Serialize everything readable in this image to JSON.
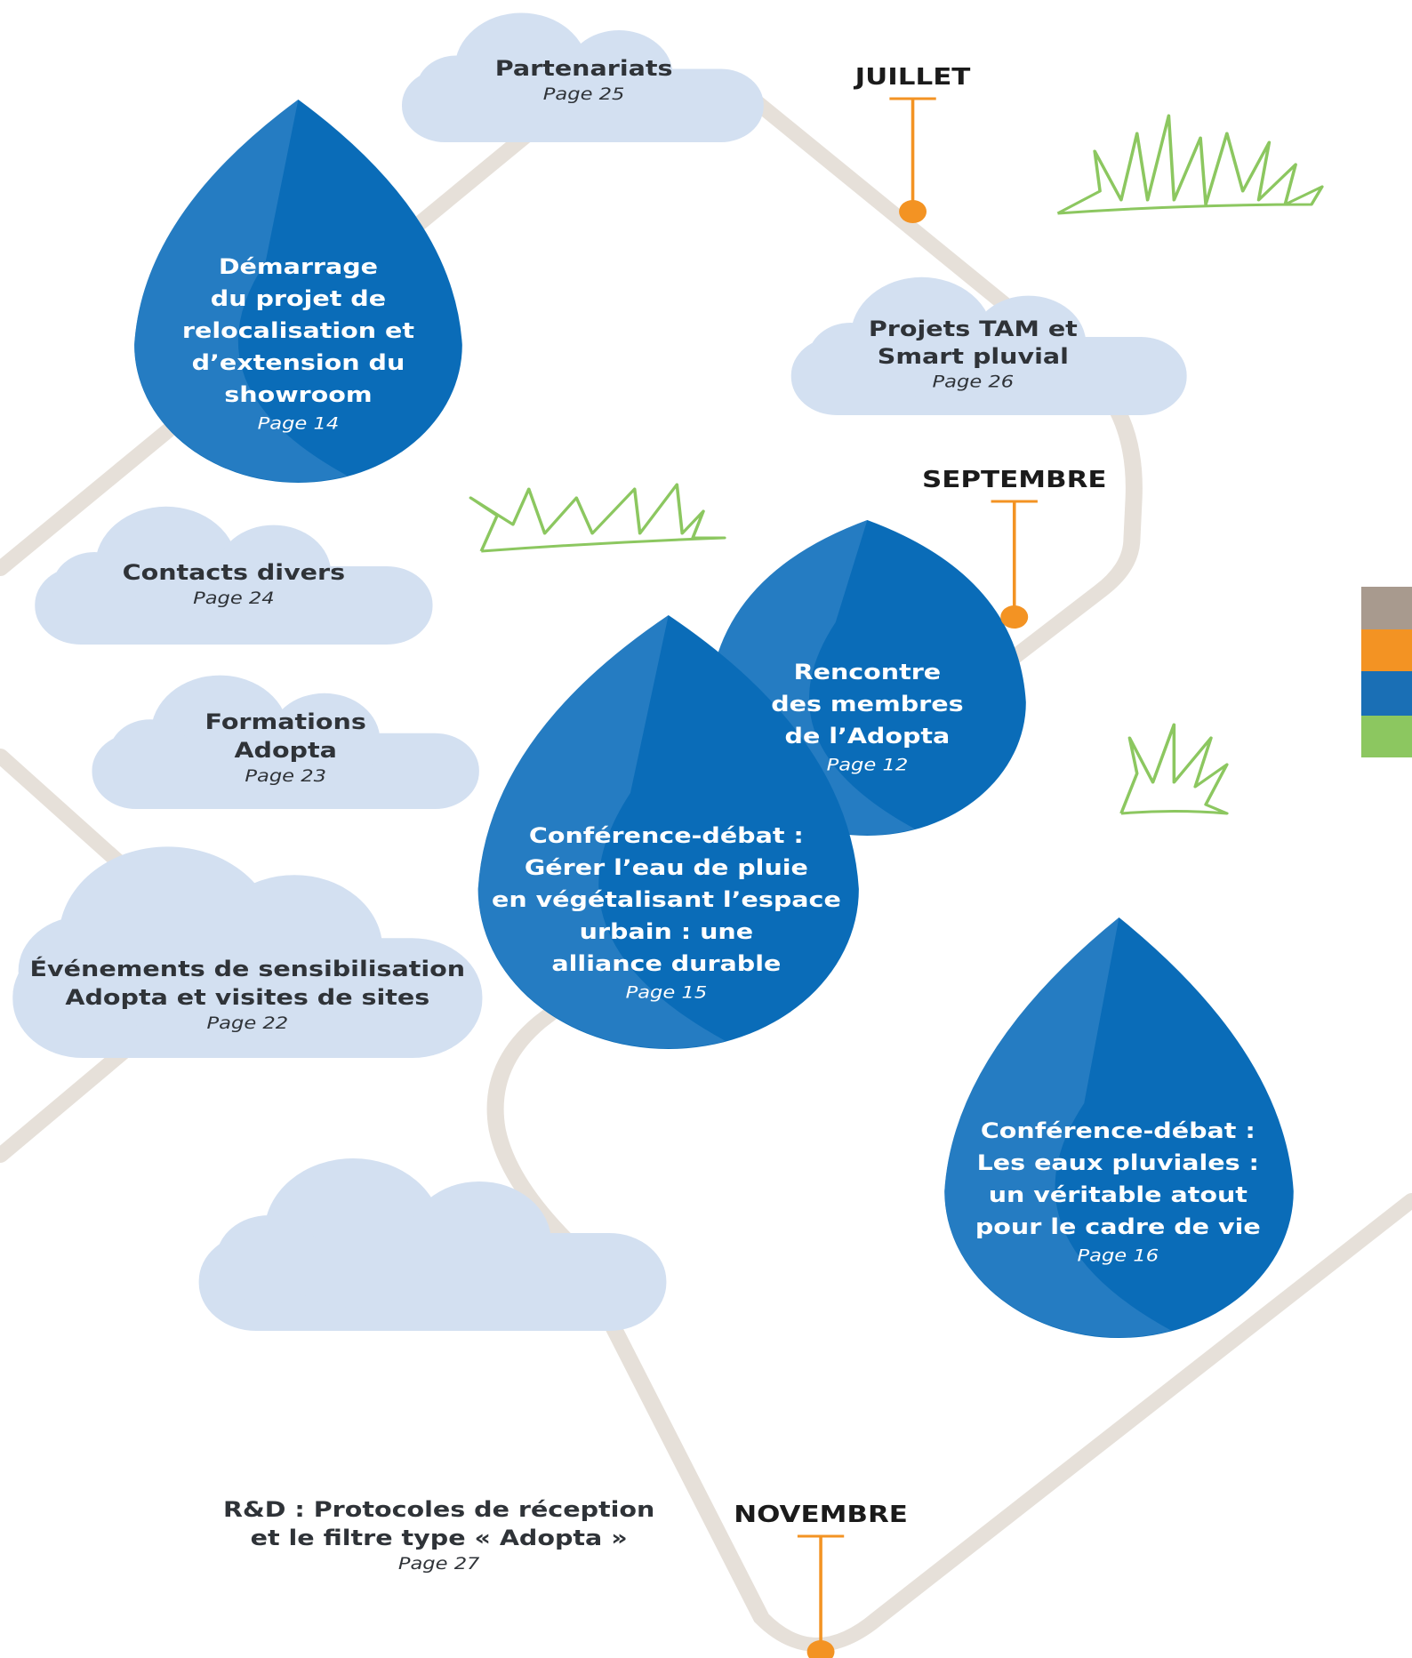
{
  "months": [
    "JUILLET",
    "SEPTEMBRE",
    "NOVEMBRE"
  ],
  "events": [
    {
      "lines": [
        "Partenariats"
      ],
      "page": "Page 25"
    },
    {
      "lines": [
        "Démarrage",
        "du projet de",
        "relocalisation et",
        "d’extension du",
        "showroom"
      ],
      "page": "Page 14"
    },
    {
      "lines": [
        "Projets TAM et",
        "Smart pluvial"
      ],
      "page": "Page 26"
    },
    {
      "lines": [
        "Contacts divers"
      ],
      "page": "Page 24"
    },
    {
      "lines": [
        "Formations",
        "Adopta"
      ],
      "page": "Page 23"
    },
    {
      "lines": [
        "Rencontre",
        "des membres",
        "de l’Adopta"
      ],
      "page": "Page 12"
    },
    {
      "lines": [
        "Conférence-débat :",
        "Gérer l’eau de pluie",
        "en végétalisant l’espace",
        "urbain : une",
        "alliance durable"
      ],
      "page": "Page 15"
    },
    {
      "lines": [
        "Événements de sensibilisation",
        "Adopta et visites de sites"
      ],
      "page": "Page 22"
    },
    {
      "lines": [
        "Conférence-débat :",
        "Les eaux pluviales :",
        "un véritable atout",
        "pour le cadre de vie"
      ],
      "page": "Page 16"
    },
    {
      "lines": [
        "R&D : Protocoles de réception",
        "et le filtre type « Adopta »"
      ],
      "page": "Page 27"
    }
  ]
}
